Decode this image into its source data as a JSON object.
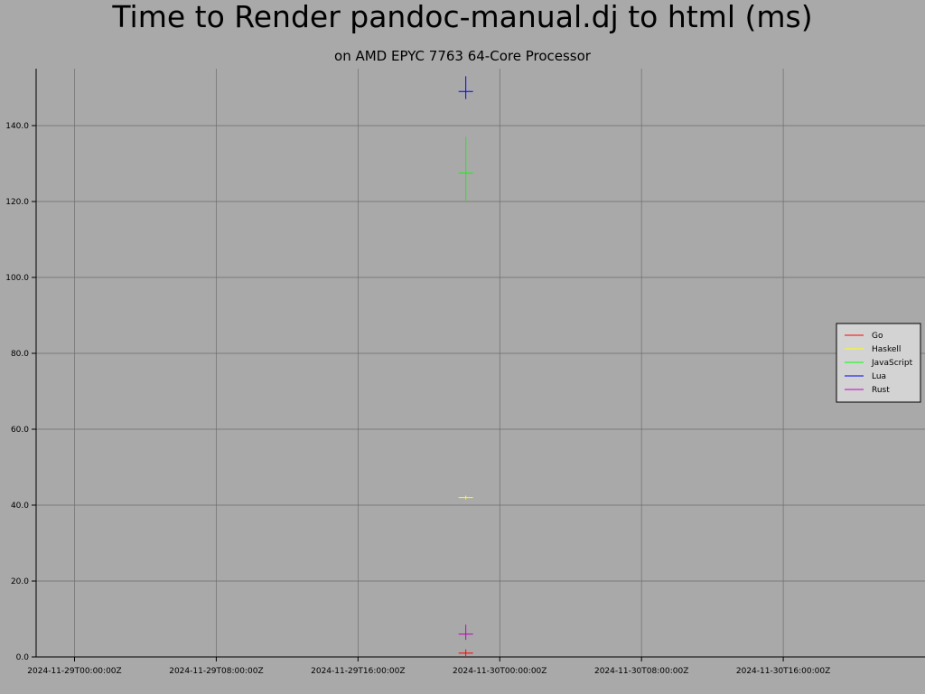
{
  "chart_data": {
    "type": "scatter",
    "title": "Time to Render pandoc-manual.dj to html (ms)",
    "subtitle": "on AMD EPYC 7763 64-Core Processor",
    "xlabel": "",
    "ylabel": "",
    "x_ticks": [
      "2024-11-29T00:00:00Z",
      "2024-11-29T08:00:00Z",
      "2024-11-29T16:00:00Z",
      "2024-11-30T00:00:00Z",
      "2024-11-30T08:00:00Z",
      "2024-11-30T16:00:00Z"
    ],
    "xlim": [
      "2024-11-28T21:50:00Z",
      "2024-12-01T00:00:00Z"
    ],
    "y_ticks": [
      "0.0",
      "20.0",
      "40.0",
      "60.0",
      "80.0",
      "100.0",
      "120.0",
      "140.0"
    ],
    "ylim": [
      0,
      155
    ],
    "grid": true,
    "legend_position": "right",
    "series": [
      {
        "name": "Go",
        "color": "#ff0000",
        "x": "2024-11-29T22:05:00Z",
        "y": 1.0,
        "y_err_low": 0.0,
        "y_err_high": 2.0
      },
      {
        "name": "Haskell",
        "color": "#ffff00",
        "x": "2024-11-29T22:05:00Z",
        "y": 42.0,
        "y_err_low": 41.5,
        "y_err_high": 42.5
      },
      {
        "name": "JavaScript",
        "color": "#00ff00",
        "x": "2024-11-29T22:05:00Z",
        "y": 127.5,
        "y_err_low": 120.0,
        "y_err_high": 137.0
      },
      {
        "name": "Lua",
        "color": "#0000ff",
        "x": "2024-11-29T22:05:00Z",
        "y": 149.0,
        "y_err_low": 147.0,
        "y_err_high": 153.0
      },
      {
        "name": "Rust",
        "color": "#c000c0",
        "x": "2024-11-29T22:05:00Z",
        "y": 6.0,
        "y_err_low": 4.5,
        "y_err_high": 8.5
      }
    ]
  }
}
